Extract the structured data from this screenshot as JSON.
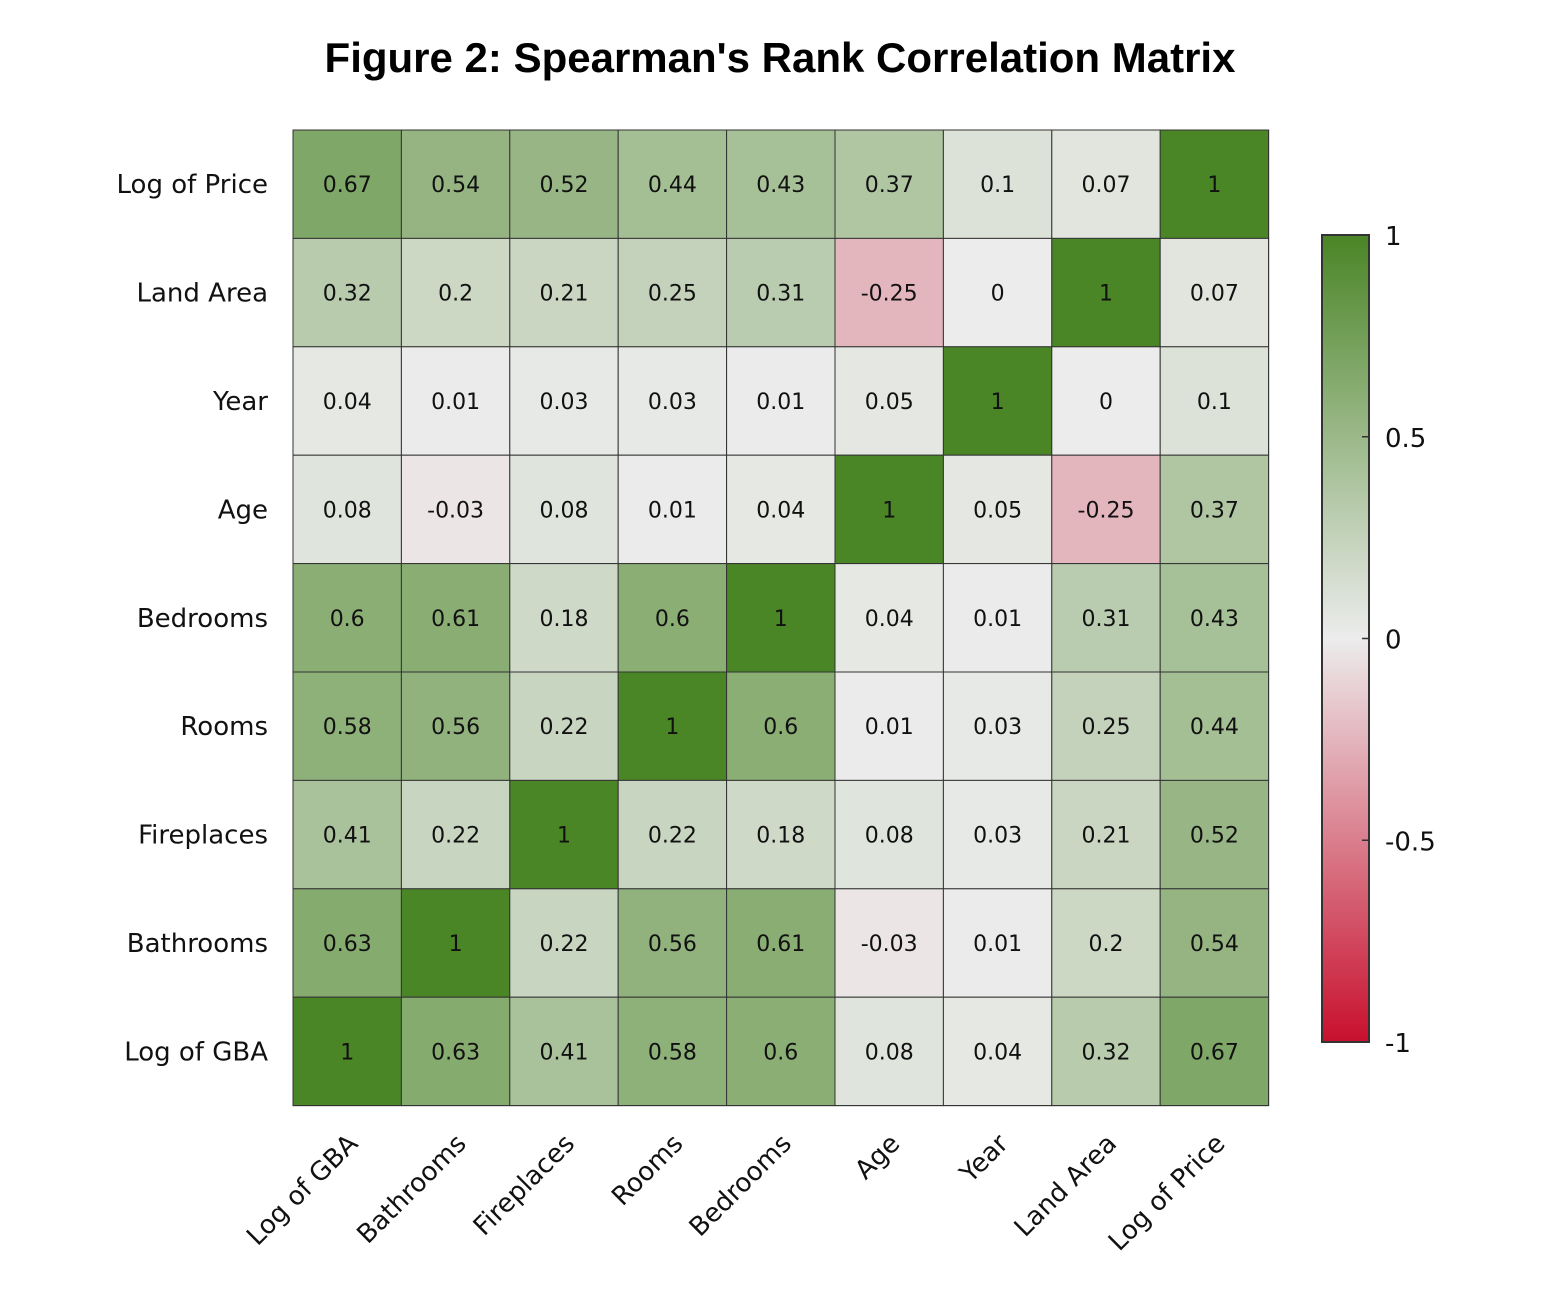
{
  "chart_data": {
    "type": "heatmap",
    "title": "Figure 2: Spearman's Rank Correlation Matrix",
    "x_labels": [
      "Log of GBA",
      "Bathrooms",
      "Fireplaces",
      "Rooms",
      "Bedrooms",
      "Age",
      "Year",
      "Land Area",
      "Log of Price"
    ],
    "y_labels_top_to_bottom": [
      "Log of Price",
      "Land Area",
      "Year",
      "Age",
      "Bedrooms",
      "Rooms",
      "Fireplaces",
      "Bathrooms",
      "Log of GBA"
    ],
    "values": [
      [
        "0.67",
        "0.54",
        "0.52",
        "0.44",
        "0.43",
        "0.37",
        "0.1",
        "0.07",
        "1"
      ],
      [
        "0.32",
        "0.2",
        "0.21",
        "0.25",
        "0.31",
        "-0.25",
        "0",
        "1",
        "0.07"
      ],
      [
        "0.04",
        "0.01",
        "0.03",
        "0.03",
        "0.01",
        "0.05",
        "1",
        "0",
        "0.1"
      ],
      [
        "0.08",
        "-0.03",
        "0.08",
        "0.01",
        "0.04",
        "1",
        "0.05",
        "-0.25",
        "0.37"
      ],
      [
        "0.6",
        "0.61",
        "0.18",
        "0.6",
        "1",
        "0.04",
        "0.01",
        "0.31",
        "0.43"
      ],
      [
        "0.58",
        "0.56",
        "0.22",
        "1",
        "0.6",
        "0.01",
        "0.03",
        "0.25",
        "0.44"
      ],
      [
        "0.41",
        "0.22",
        "1",
        "0.22",
        "0.18",
        "0.08",
        "0.03",
        "0.21",
        "0.52"
      ],
      [
        "0.63",
        "1",
        "0.22",
        "0.56",
        "0.61",
        "-0.03",
        "0.01",
        "0.2",
        "0.54"
      ],
      [
        "1",
        "0.63",
        "0.41",
        "0.58",
        "0.6",
        "0.08",
        "0.04",
        "0.32",
        "0.67"
      ]
    ],
    "colorbar": {
      "range": [
        -1,
        1
      ],
      "tick_values": [
        1,
        0.5,
        0,
        -0.5,
        -1
      ],
      "tick_labels": [
        "1",
        "0.5",
        "0",
        "-0.5",
        "-1"
      ],
      "colors": {
        "low": "#c8102e",
        "mid": "#ececec",
        "high": "#4a8526"
      }
    },
    "grid": true
  }
}
